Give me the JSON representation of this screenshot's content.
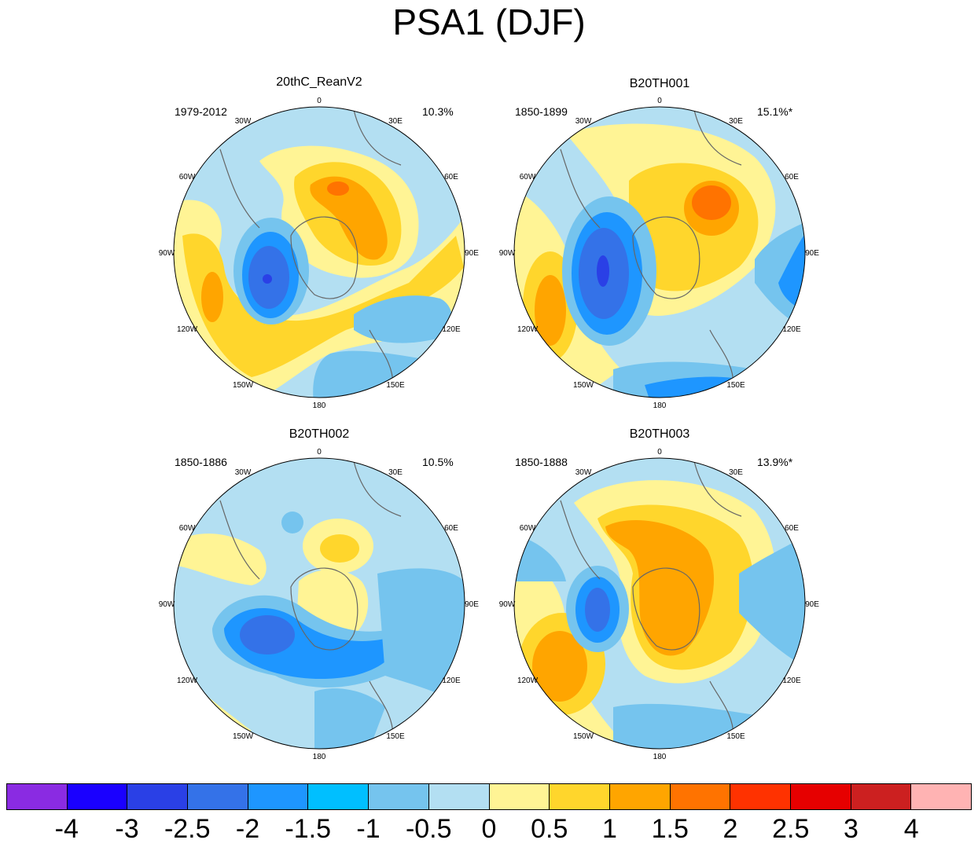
{
  "title": "PSA1 (DJF)",
  "panels": [
    {
      "name": "20thC_ReanV2",
      "period": "1979-2012",
      "percent": "10.3%"
    },
    {
      "name": "B20TH001",
      "period": "1850-1899",
      "percent": "15.1%*"
    },
    {
      "name": "B20TH002",
      "period": "1850-1886",
      "percent": "10.5%"
    },
    {
      "name": "B20TH003",
      "period": "1850-1888",
      "percent": "13.9%*"
    }
  ],
  "longitude_labels": [
    "0",
    "30E",
    "60E",
    "90E",
    "120E",
    "150E",
    "180",
    "150W",
    "120W",
    "90W",
    "60W",
    "30W"
  ],
  "colorbar": {
    "colors": [
      "#8a2be2",
      "#1a00ff",
      "#2a40e6",
      "#3472e8",
      "#1e96ff",
      "#00bfff",
      "#75c4ee",
      "#b3dff2",
      "#fff495",
      "#ffd62c",
      "#ffa500",
      "#ff7300",
      "#ff3200",
      "#e60000",
      "#cc2020",
      "#ffb3b3"
    ],
    "labels": [
      "-4",
      "-3",
      "-2.5",
      "-2",
      "-1.5",
      "-1",
      "-0.5",
      "0",
      "0.5",
      "1",
      "1.5",
      "2",
      "2.5",
      "3",
      "4"
    ]
  },
  "map_fill": {
    "background": "#b3dff2",
    "coast": "#666666"
  }
}
